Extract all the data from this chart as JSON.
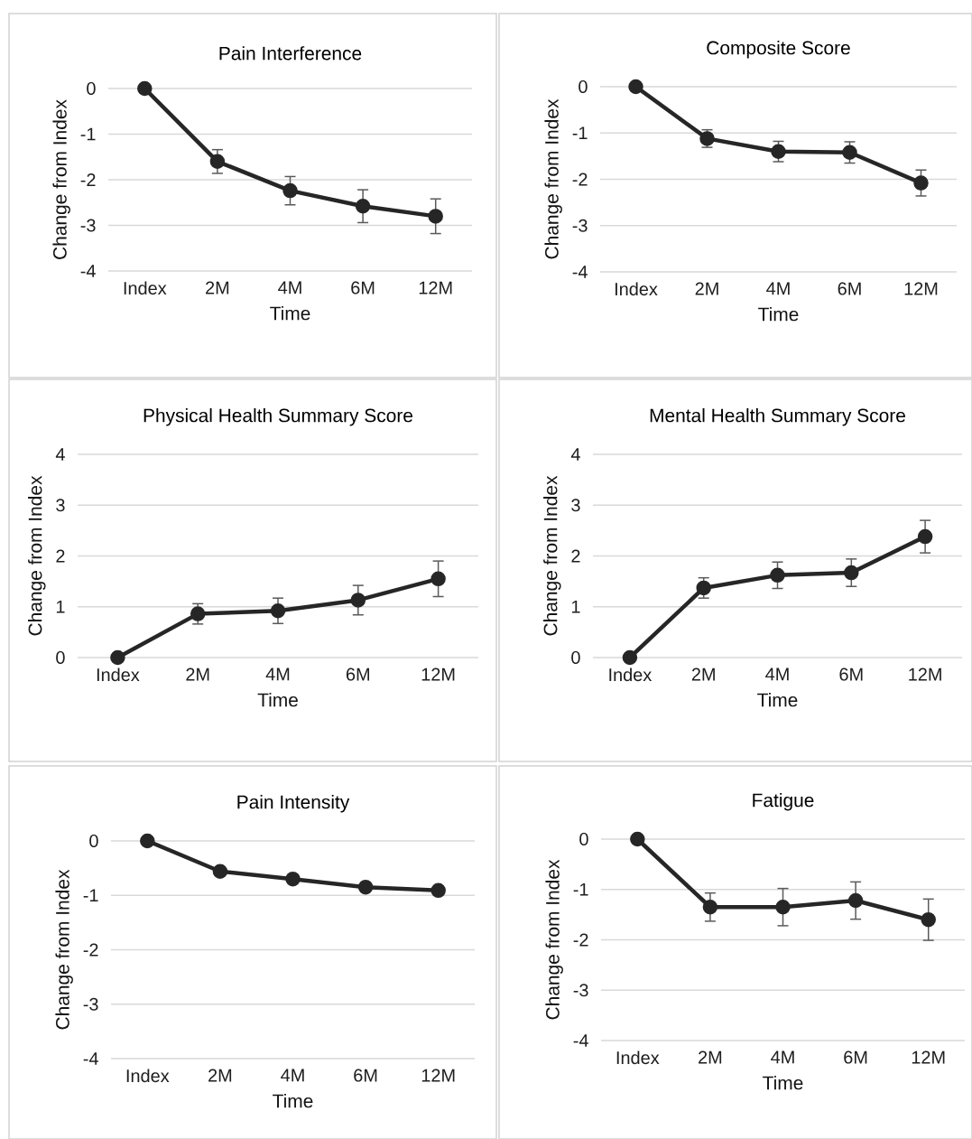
{
  "chart_data": [
    {
      "type": "line",
      "title": "Pain Interference",
      "xlabel": "Time",
      "ylabel": "Change from Index",
      "categories": [
        "Index",
        "2M",
        "4M",
        "6M",
        "12M"
      ],
      "ylim": [
        -4,
        0
      ],
      "yticks": [
        -4,
        -3,
        -2,
        -1,
        0
      ],
      "grid": "y",
      "marker": "circle",
      "series": [
        {
          "color": "#262626",
          "values": [
            0,
            -1.6,
            -2.24,
            -2.58,
            -2.8
          ],
          "errors": [
            null,
            0.26,
            0.31,
            0.36,
            0.38
          ]
        }
      ]
    },
    {
      "type": "line",
      "title": "Composite Score",
      "xlabel": "Time",
      "ylabel": "Change from Index",
      "categories": [
        "Index",
        "2M",
        "4M",
        "6M",
        "12M"
      ],
      "ylim": [
        -4,
        0
      ],
      "yticks": [
        -4,
        -3,
        -2,
        -1,
        0
      ],
      "grid": "y",
      "marker": "circle",
      "series": [
        {
          "color": "#262626",
          "values": [
            0,
            -1.12,
            -1.4,
            -1.42,
            -2.08
          ],
          "errors": [
            null,
            0.19,
            0.22,
            0.23,
            0.28
          ]
        }
      ]
    },
    {
      "type": "line",
      "title": "Physical Health Summary Score",
      "xlabel": "Time",
      "ylabel": "Change from Index",
      "categories": [
        "Index",
        "2M",
        "4M",
        "6M",
        "12M"
      ],
      "ylim": [
        0,
        4
      ],
      "yticks": [
        0,
        1,
        2,
        3,
        4
      ],
      "grid": "y",
      "marker": "circle",
      "series": [
        {
          "color": "#262626",
          "values": [
            0,
            0.86,
            0.92,
            1.13,
            1.55
          ],
          "errors": [
            null,
            0.2,
            0.25,
            0.29,
            0.35
          ]
        }
      ]
    },
    {
      "type": "line",
      "title": "Mental Health Summary Score",
      "xlabel": "Time",
      "ylabel": "Change from Index",
      "categories": [
        "Index",
        "2M",
        "4M",
        "6M",
        "12M"
      ],
      "ylim": [
        0,
        4
      ],
      "yticks": [
        0,
        1,
        2,
        3,
        4
      ],
      "grid": "y",
      "marker": "circle",
      "series": [
        {
          "color": "#262626",
          "values": [
            0,
            1.37,
            1.62,
            1.67,
            2.38
          ],
          "errors": [
            null,
            0.2,
            0.26,
            0.27,
            0.32
          ]
        }
      ]
    },
    {
      "type": "line",
      "title": "Pain Intensity",
      "xlabel": "Time",
      "ylabel": "Change from Index",
      "categories": [
        "Index",
        "2M",
        "4M",
        "6M",
        "12M"
      ],
      "ylim": [
        -4,
        0
      ],
      "yticks": [
        -4,
        -3,
        -2,
        -1,
        0
      ],
      "grid": "y",
      "marker": "circle",
      "series": [
        {
          "color": "#262626",
          "values": [
            0,
            -0.56,
            -0.7,
            -0.85,
            -0.91
          ]
        }
      ]
    },
    {
      "type": "line",
      "title": "Fatigue",
      "xlabel": "Time",
      "ylabel": "Change from Index",
      "categories": [
        "Index",
        "2M",
        "4M",
        "6M",
        "12M"
      ],
      "ylim": [
        -4,
        0
      ],
      "yticks": [
        -4,
        -3,
        -2,
        -1,
        0
      ],
      "grid": "y",
      "marker": "circle",
      "series": [
        {
          "color": "#262626",
          "values": [
            0,
            -1.35,
            -1.35,
            -1.22,
            -1.6
          ],
          "errors": [
            null,
            0.28,
            0.37,
            0.37,
            0.41
          ]
        }
      ]
    }
  ]
}
